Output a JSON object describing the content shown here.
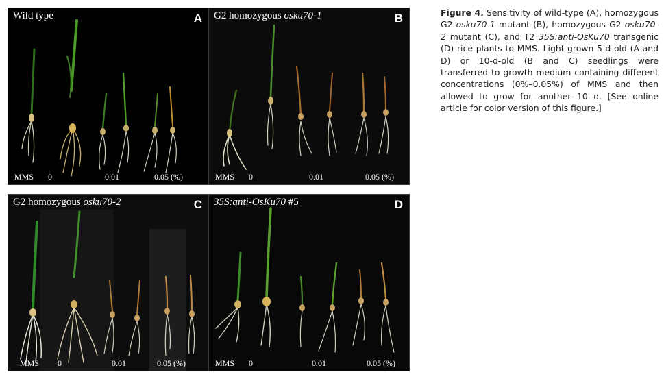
{
  "figure": {
    "caption": {
      "label": "Figure 4.",
      "parts": [
        " Sensitivity of wild-type (A), homozygous G2 ",
        "osku70-1",
        " mutant (B), homozygous G2 ",
        "osku70-2",
        " mutant (C), and T2 ",
        "35S:anti-OsKu70",
        " transgenic (D) rice plants to MMS. Light-grown 5-d-old (A and D) or 10-d-old (B and C) seedlings were transferred to growth medium containing different concentrations (0%–0.05%) of MMS and then allowed to grow for another 10 d. [See online article for color version of this figure.]"
      ]
    },
    "panels": [
      {
        "letter": "A",
        "title_plain": "Wild type",
        "title_italic": "",
        "labels": {
          "mms": "MMS",
          "c0": "0",
          "c1": "0.01",
          "c2": "0.05 (%)"
        },
        "leaf_color": "#4f9a2a"
      },
      {
        "letter": "B",
        "title_plain": "G2 homozygous ",
        "title_italic": "osku70-1",
        "labels": {
          "mms": "MMS",
          "c0": "0",
          "c1": "0.01",
          "c2": "0.05 (%)"
        },
        "leaf_color": "#b07a3a"
      },
      {
        "letter": "C",
        "title_plain": "G2 homozygous ",
        "title_italic": "osku70-2",
        "labels": {
          "mms": "MMS",
          "c0": "0",
          "c1": "0.01",
          "c2": "0.05 (%)"
        },
        "leaf_color": "#c08a45"
      },
      {
        "letter": "D",
        "title_plain": "",
        "title_italic": "35S:anti-OsKu70",
        "title_suffix": " #5",
        "labels": {
          "mms": "MMS",
          "c0": "0",
          "c1": "0.01",
          "c2": "0.05 (%)"
        },
        "leaf_color": "#5aa02e"
      }
    ]
  }
}
